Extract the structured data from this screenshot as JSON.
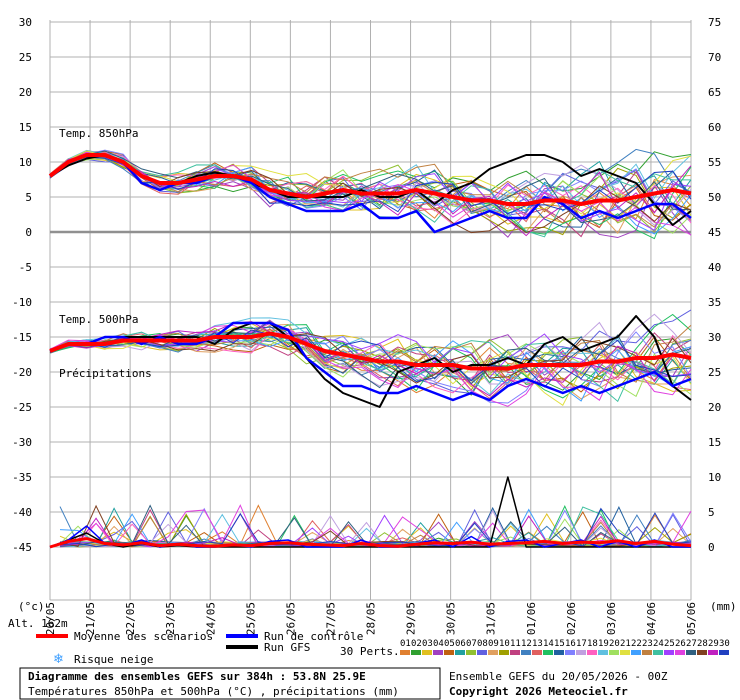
{
  "chart_data": {
    "type": "line",
    "title": "Diagramme des ensembles GEFS sur 384h : 53.8N 25.9E",
    "subtitle": "Températures 850hPa et 500hPa (°C) , précipitations (mm)",
    "run_label": "Ensemble GEFS du 20/05/2026 - 00Z",
    "copyright": "Copyright 2026 Meteociel.fr",
    "left_axis": {
      "unit": "(°c)",
      "ticks": [
        30,
        25,
        20,
        15,
        10,
        5,
        0,
        -5,
        -10,
        -15,
        -20,
        -25,
        -30,
        -35,
        -40,
        -45
      ],
      "range": [
        -45,
        30
      ]
    },
    "right_axis": {
      "unit": "(mm)",
      "ticks": [
        75,
        70,
        65,
        60,
        55,
        50,
        45,
        40,
        35,
        30,
        25,
        20,
        15,
        10,
        5,
        0
      ],
      "range": [
        0,
        75
      ]
    },
    "x_ticks": [
      "20/05",
      "21/05",
      "22/05",
      "23/05",
      "24/05",
      "25/05",
      "26/05",
      "27/05",
      "28/05",
      "29/05",
      "30/05",
      "31/05",
      "01/06",
      "02/06",
      "03/06",
      "04/06",
      "05/06"
    ],
    "x_range_hours": [
      0,
      384
    ],
    "panel_labels": {
      "t850": "Temp. 850hPa",
      "t500": "Temp. 500hPa",
      "precip": "Précipitations"
    },
    "altitude": "Alt. 162m",
    "legend": {
      "mean": "Moyenne des scénarios",
      "control": "Run de contrôle",
      "gfs": "Run GFS",
      "snow": "Risque neige",
      "perts": "30 Perts.",
      "perts_numbers": [
        "01",
        "02",
        "03",
        "04",
        "05",
        "06",
        "07",
        "08",
        "09",
        "10",
        "11",
        "12",
        "13",
        "14",
        "15",
        "16",
        "17",
        "18",
        "19",
        "20",
        "21",
        "22",
        "23",
        "24",
        "25",
        "26",
        "27",
        "28",
        "29",
        "30"
      ],
      "perts_colors": [
        "#e08030",
        "#30a030",
        "#e0c020",
        "#a040c0",
        "#c06010",
        "#20a0a0",
        "#90c030",
        "#6060e0",
        "#e0a060",
        "#a0a000",
        "#c04080",
        "#4080c0",
        "#e06060",
        "#20c060",
        "#2060a0",
        "#8080ff",
        "#c0a0e0",
        "#ff60c0",
        "#60c0e0",
        "#a0e060",
        "#e0e040",
        "#40a0ff",
        "#c08040",
        "#40c0a0",
        "#a040ff",
        "#e040e0",
        "#306080",
        "#804020",
        "#c020c0",
        "#2040c0"
      ]
    },
    "colors": {
      "mean": "#ff0000",
      "control": "#0000ff",
      "gfs": "#000000",
      "snow": "#40a0ff",
      "grid": "#b0b0b0",
      "zero_line": "#909090"
    },
    "series": [
      {
        "name": "Moyenne des scénarios",
        "t850": [
          8,
          10,
          11,
          11,
          10,
          8,
          7,
          7,
          7.5,
          8,
          8,
          7.5,
          6,
          5.5,
          5,
          5.5,
          6,
          5.5,
          5.5,
          5.5,
          6,
          5.5,
          5,
          4.5,
          4.5,
          4,
          4,
          4.5,
          4.5,
          4,
          4.5,
          4.5,
          5,
          5.5,
          6,
          5.5
        ],
        "t500": [
          -17,
          -16,
          -16,
          -16,
          -15.5,
          -15.5,
          -15.5,
          -15.5,
          -15.5,
          -15,
          -15,
          -15,
          -14.5,
          -15,
          -16,
          -17,
          -17.5,
          -18,
          -18.5,
          -18.5,
          -19,
          -19,
          -19,
          -19.5,
          -19.5,
          -19.5,
          -19,
          -19,
          -19,
          -19,
          -18.5,
          -18.5,
          -18,
          -18,
          -17.5,
          -18
        ],
        "precip": [
          0,
          0.8,
          1.2,
          0.5,
          0.3,
          0.6,
          0.2,
          0.4,
          0.2,
          0.1,
          0.3,
          0.2,
          0.5,
          0.6,
          0.4,
          0.3,
          0.2,
          0.5,
          0.2,
          0.1,
          0.4,
          0.6,
          0.5,
          0.7,
          0.4,
          0.5,
          0.6,
          0.8,
          0.5,
          0.7,
          0.6,
          0.9,
          0.5,
          0.8,
          0.4,
          0.2
        ]
      },
      {
        "name": "Run de contrôle",
        "t850": [
          8,
          10,
          11,
          11,
          10,
          7,
          6,
          7,
          7,
          8,
          8,
          7,
          5,
          4,
          3,
          3,
          3,
          4,
          2,
          2,
          3,
          0,
          1,
          2,
          3,
          2,
          2,
          5,
          4,
          2,
          3,
          2,
          3,
          4,
          4,
          2
        ],
        "t500": [
          -17,
          -16,
          -16,
          -15,
          -15,
          -16,
          -15,
          -16,
          -16,
          -15,
          -13,
          -13,
          -13,
          -14,
          -18,
          -20,
          -22,
          -22,
          -23,
          -23,
          -22,
          -23,
          -24,
          -23,
          -24,
          -22,
          -21,
          -22,
          -23,
          -22,
          -23,
          -22,
          -21,
          -20,
          -22,
          -21
        ],
        "precip": [
          0,
          1,
          3,
          0.5,
          0.2,
          1,
          0,
          0.5,
          0,
          0,
          0.3,
          0,
          0.8,
          1,
          0,
          0,
          0,
          1,
          0,
          0,
          0.5,
          1,
          0,
          1.5,
          0,
          0.8,
          1,
          0,
          0.5,
          1,
          0,
          0.8,
          0,
          1,
          0,
          0
        ]
      },
      {
        "name": "Run GFS",
        "t850": [
          8,
          9.5,
          10.5,
          11,
          10,
          7,
          6,
          7,
          8,
          8.5,
          8,
          7,
          6,
          5,
          5,
          5,
          5,
          6,
          5,
          5,
          6,
          4,
          6,
          7,
          9,
          10,
          11,
          11,
          10,
          8,
          9,
          8,
          7,
          4,
          1,
          3
        ],
        "t500": [
          -17,
          -16,
          -16,
          -15,
          -15,
          -15,
          -15,
          -15,
          -15,
          -16,
          -14,
          -13,
          -13,
          -15,
          -18,
          -21,
          -23,
          -24,
          -25,
          -20,
          -19,
          -18,
          -20,
          -19,
          -19,
          -18,
          -19,
          -16,
          -15,
          -17,
          -16,
          -15,
          -12,
          -15,
          -22,
          -24
        ],
        "precip": [
          0,
          1,
          2,
          0.5,
          0,
          0.5,
          0,
          0.2,
          0,
          0,
          0,
          0,
          0,
          0,
          0,
          0,
          0,
          0,
          0,
          0,
          0,
          0,
          0,
          0,
          0,
          10,
          0,
          0,
          0,
          0,
          0,
          0,
          0,
          0,
          0,
          0
        ]
      }
    ]
  }
}
